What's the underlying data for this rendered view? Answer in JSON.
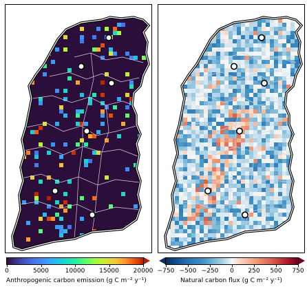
{
  "panels": [
    {
      "id": "anthropogenic",
      "colormap": "turbo",
      "background_color": "#2b0f3a",
      "colorbar": {
        "label": "Anthropogenic carbon emission (g C m⁻² y⁻¹)",
        "min": 0,
        "max": 20000,
        "ticks": [
          "0",
          "5000",
          "10000",
          "15000",
          "20000"
        ],
        "extend": "max"
      },
      "markers": [
        {
          "lon": 0.72,
          "lat": 0.12
        },
        {
          "lon": 0.52,
          "lat": 0.24
        },
        {
          "lon": 0.74,
          "lat": 0.31
        },
        {
          "lon": 0.56,
          "lat": 0.51
        },
        {
          "lon": 0.33,
          "lat": 0.76
        },
        {
          "lon": 0.6,
          "lat": 0.86
        }
      ]
    },
    {
      "id": "natural",
      "colormap": "RdBu_r",
      "background_color": "#ffffff",
      "colorbar": {
        "label": "Natural carbon flux (g C m⁻² y⁻¹)",
        "min": -750,
        "max": 750,
        "ticks": [
          "−750",
          "−500",
          "−250",
          "0",
          "250",
          "500",
          "750"
        ],
        "extend": "both"
      },
      "markers": [
        {
          "lon": 0.72,
          "lat": 0.12
        },
        {
          "lon": 0.52,
          "lat": 0.24
        },
        {
          "lon": 0.74,
          "lat": 0.31
        },
        {
          "lon": 0.56,
          "lat": 0.51
        },
        {
          "lon": 0.33,
          "lat": 0.76
        },
        {
          "lon": 0.6,
          "lat": 0.86
        }
      ]
    }
  ]
}
